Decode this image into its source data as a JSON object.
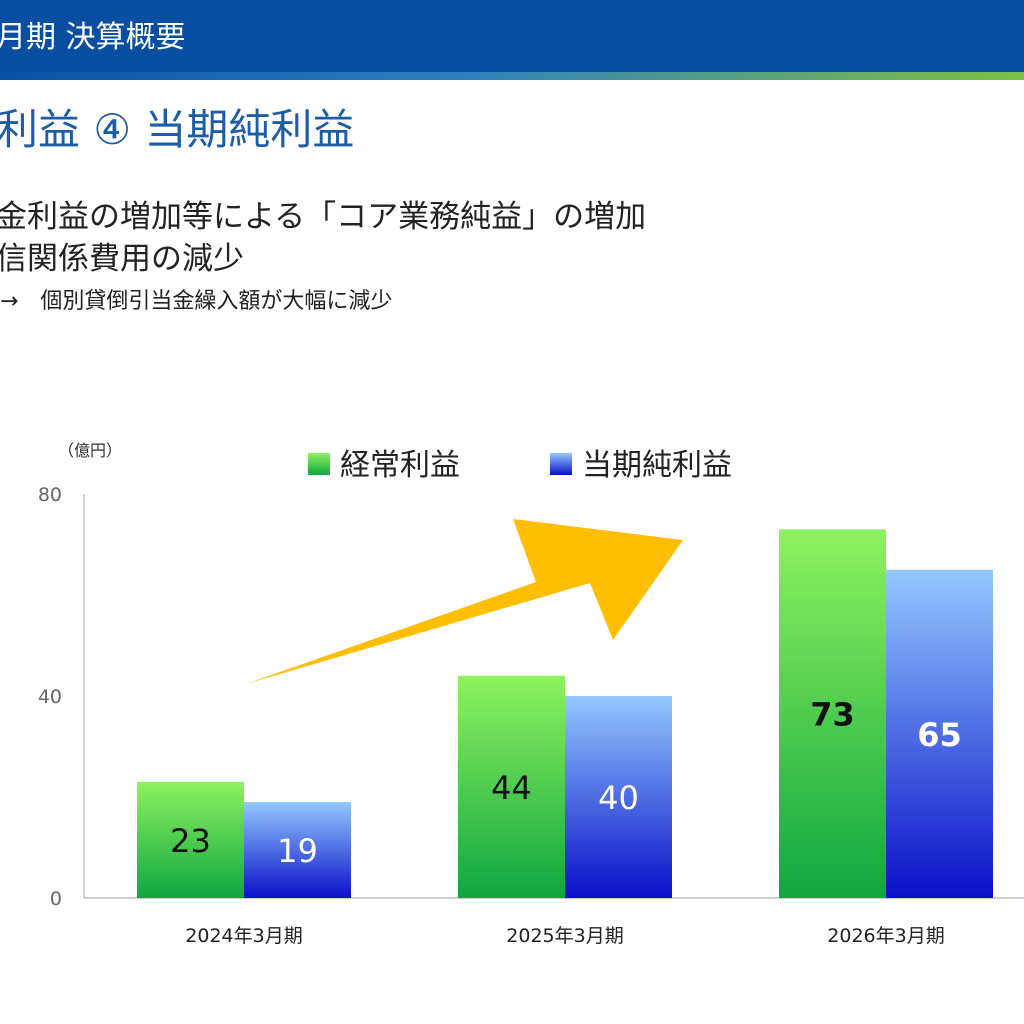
{
  "header": {
    "title": "月期 決算概要"
  },
  "section": {
    "title": "利益 ④ 当期純利益"
  },
  "bullets": [
    "金利益の増加等による「コア業務純益」の増加",
    "信関係費用の減少",
    "→　個別貸倒引当金繰入額が大幅に減少"
  ],
  "chart_data": {
    "type": "bar",
    "unit_label": "（億円）",
    "categories": [
      "2024年3月期",
      "2025年3月期",
      "2026年3月期"
    ],
    "series": [
      {
        "name": "経常利益",
        "values": [
          23,
          44,
          73
        ],
        "color_top": "#8ef25f",
        "color_bottom": "#10a640",
        "label_color": "#111111"
      },
      {
        "name": "当期純利益",
        "values": [
          19,
          40,
          65
        ],
        "color_top": "#93c9ff",
        "color_bottom": "#0a0fc8",
        "label_color": "#ffffff"
      }
    ],
    "yticks": [
      0,
      40,
      80
    ],
    "ylim": [
      0,
      80
    ],
    "grid": false,
    "legend": "top",
    "annotation": {
      "type": "arrow",
      "color": "#ffbf00"
    }
  }
}
